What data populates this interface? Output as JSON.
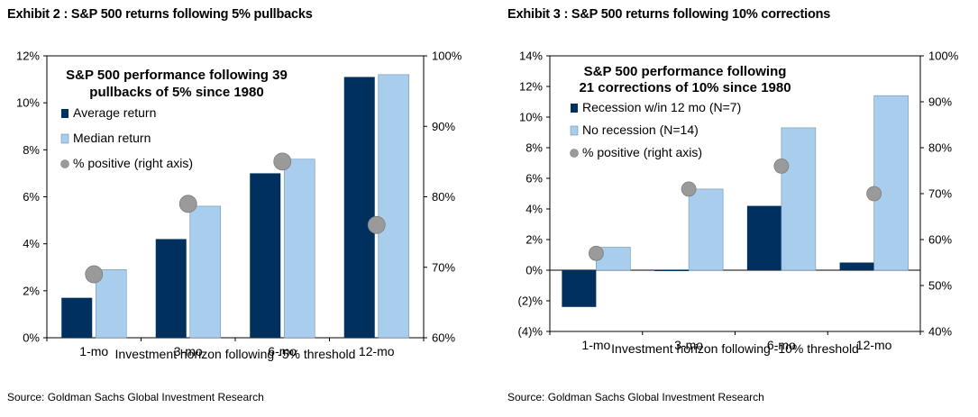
{
  "charts": [
    {
      "exhibit_title": "Exhibit 2 : S&P 500 returns following 5% pullbacks",
      "source": "Source: Goldman Sachs Global Investment Research",
      "chart_data": {
        "type": "bar",
        "title_lines": [
          "S&P 500 performance following 39",
          "pullbacks of 5% since 1980"
        ],
        "xlabel": "Investment horizon following -5% threshold",
        "categories": [
          "1-mo",
          "3-mo",
          "6-mo",
          "12-mo"
        ],
        "series": [
          {
            "name": "Average return",
            "axis": "left",
            "color": "#00305e",
            "values": [
              1.7,
              4.2,
              7.0,
              11.1
            ]
          },
          {
            "name": "Median return",
            "axis": "left",
            "color": "#a9cdec",
            "values": [
              2.9,
              5.6,
              7.6,
              11.2
            ]
          },
          {
            "name": "% positive (right axis)",
            "axis": "right",
            "marker": "circle",
            "color": "#9a9a9a",
            "values": [
              69,
              79,
              85,
              76
            ]
          }
        ],
        "ylim_left": [
          0,
          12
        ],
        "yticks_left": [
          0,
          2,
          4,
          6,
          8,
          10,
          12
        ],
        "ytick_labels_left": [
          "0%",
          "2%",
          "4%",
          "6%",
          "8%",
          "10%",
          "12%"
        ],
        "ylim_right": [
          60,
          100
        ],
        "yticks_right": [
          60,
          70,
          80,
          90,
          100
        ],
        "ytick_labels_right": [
          "60%",
          "70%",
          "80%",
          "90%",
          "100%"
        ],
        "grid": false,
        "legend_position": "top-left"
      }
    },
    {
      "exhibit_title": "Exhibit 3 : S&P 500 returns following 10% corrections",
      "source": "Source: Goldman Sachs Global Investment Research",
      "chart_data": {
        "type": "bar",
        "title_lines": [
          "S&P 500 performance following",
          "21 corrections of 10% since 1980"
        ],
        "xlabel": "Investment horizon following -10% threshold",
        "categories": [
          "1-mo",
          "3-mo",
          "6-mo",
          "12-mo"
        ],
        "series": [
          {
            "name": "Recession w/in 12 mo (N=7)",
            "axis": "left",
            "color": "#00305e",
            "values": [
              -2.4,
              0.0,
              4.2,
              0.5
            ]
          },
          {
            "name": "No recession (N=14)",
            "axis": "left",
            "color": "#a9cdec",
            "values": [
              1.5,
              5.3,
              9.3,
              11.4
            ]
          },
          {
            "name": "% positive (right axis)",
            "axis": "right",
            "marker": "circle",
            "color": "#9a9a9a",
            "values": [
              57,
              71,
              76,
              70
            ]
          }
        ],
        "ylim_left": [
          -4,
          14
        ],
        "yticks_left": [
          -4,
          -2,
          0,
          2,
          4,
          6,
          8,
          10,
          12,
          14
        ],
        "ytick_labels_left": [
          "(4)%",
          "(2)%",
          "0%",
          "2%",
          "4%",
          "6%",
          "8%",
          "10%",
          "12%",
          "14%"
        ],
        "ylim_right": [
          40,
          100
        ],
        "yticks_right": [
          40,
          50,
          60,
          70,
          80,
          90,
          100
        ],
        "ytick_labels_right": [
          "40%",
          "50%",
          "60%",
          "70%",
          "80%",
          "90%",
          "100%"
        ],
        "grid": false,
        "legend_position": "top-left"
      }
    }
  ]
}
